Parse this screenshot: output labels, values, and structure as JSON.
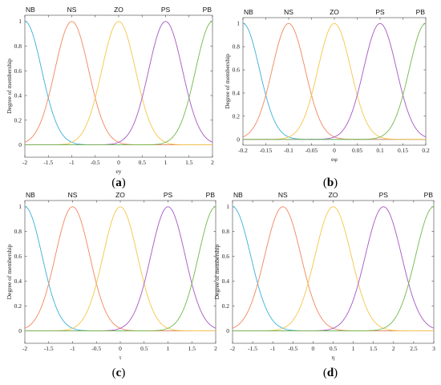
{
  "colors": {
    "NB": "#3ab0d8",
    "NS": "#f0875e",
    "ZO": "#f5c54a",
    "PS": "#a557c2",
    "PB": "#72b84a"
  },
  "chart_data": [
    {
      "type": "line",
      "caption": {
        "open": "(",
        "letter": "a",
        "close": ")"
      },
      "xlabel": "ey",
      "ylabel": "Degree of membership",
      "xlim": [
        -2,
        2
      ],
      "ylim": [
        -0.1,
        1.05
      ],
      "xticks": [
        "-2",
        "-1.5",
        "-1",
        "-0.5",
        "0",
        "0.5",
        "1",
        "1.5",
        "2"
      ],
      "yticks": [
        "0",
        "0.2",
        "0.4",
        "0.6",
        "0.8",
        "1"
      ],
      "grid": false,
      "series": [
        {
          "name": "NB",
          "mean": -2,
          "sigma": 0.36
        },
        {
          "name": "NS",
          "mean": -1,
          "sigma": 0.36
        },
        {
          "name": "ZO",
          "mean": 0,
          "sigma": 0.36
        },
        {
          "name": "PS",
          "mean": 1,
          "sigma": 0.36
        },
        {
          "name": "PB",
          "mean": 2,
          "sigma": 0.36
        }
      ]
    },
    {
      "type": "line",
      "caption": {
        "open": "(",
        "letter": "b",
        "close": ")"
      },
      "xlabel": "eφ",
      "ylabel": "Degree of membership",
      "xlim": [
        -0.2,
        0.2
      ],
      "ylim": [
        -0.05,
        1.05
      ],
      "xticks": [
        "-0.2",
        "-0.15",
        "-0.1",
        "-0.05",
        "0",
        "0.05",
        "0.1",
        "0.15",
        "0.2"
      ],
      "yticks": [
        "0",
        "0.2",
        "0.4",
        "0.6",
        "0.8",
        "1"
      ],
      "grid": false,
      "series": [
        {
          "name": "NB",
          "mean": -0.2,
          "sigma": 0.036
        },
        {
          "name": "NS",
          "mean": -0.1,
          "sigma": 0.036
        },
        {
          "name": "ZO",
          "mean": 0,
          "sigma": 0.036
        },
        {
          "name": "PS",
          "mean": 0.1,
          "sigma": 0.036
        },
        {
          "name": "PB",
          "mean": 0.2,
          "sigma": 0.036
        }
      ]
    },
    {
      "type": "line",
      "caption": {
        "open": "(",
        "letter": "c",
        "close": ")"
      },
      "xlabel": "τ",
      "ylabel": "Degree of membership",
      "xlim": [
        -2,
        2
      ],
      "ylim": [
        -0.1,
        1.05
      ],
      "xticks": [
        "-2",
        "-1.5",
        "-1",
        "-0.5",
        "0",
        "0.5",
        "1",
        "1.5",
        "2"
      ],
      "yticks": [
        "0",
        "0.2",
        "0.4",
        "0.6",
        "0.8",
        "1"
      ],
      "grid": false,
      "series": [
        {
          "name": "NB",
          "mean": -2,
          "sigma": 0.36
        },
        {
          "name": "NS",
          "mean": -1,
          "sigma": 0.36
        },
        {
          "name": "ZO",
          "mean": 0,
          "sigma": 0.36
        },
        {
          "name": "PS",
          "mean": 1,
          "sigma": 0.36
        },
        {
          "name": "PB",
          "mean": 2,
          "sigma": 0.36
        }
      ]
    },
    {
      "type": "line",
      "caption": {
        "open": "(",
        "letter": "d",
        "close": ")"
      },
      "xlabel": "η",
      "ylabel": "Degree of membership",
      "xlim": [
        -2,
        3
      ],
      "ylim": [
        -0.1,
        1.05
      ],
      "xticks": [
        "-2",
        "-1.5",
        "-1",
        "-0.5",
        "0",
        "0.5",
        "1",
        "1.5",
        "2",
        "2.5",
        "3"
      ],
      "yticks": [
        "0",
        "0.2",
        "0.4",
        "0.6",
        "0.8",
        "1"
      ],
      "grid": false,
      "series": [
        {
          "name": "NB",
          "mean": -2,
          "sigma": 0.45
        },
        {
          "name": "NS",
          "mean": -0.75,
          "sigma": 0.45
        },
        {
          "name": "ZO",
          "mean": 0.5,
          "sigma": 0.45
        },
        {
          "name": "PS",
          "mean": 1.75,
          "sigma": 0.45
        },
        {
          "name": "PB",
          "mean": 3,
          "sigma": 0.45
        }
      ]
    }
  ]
}
